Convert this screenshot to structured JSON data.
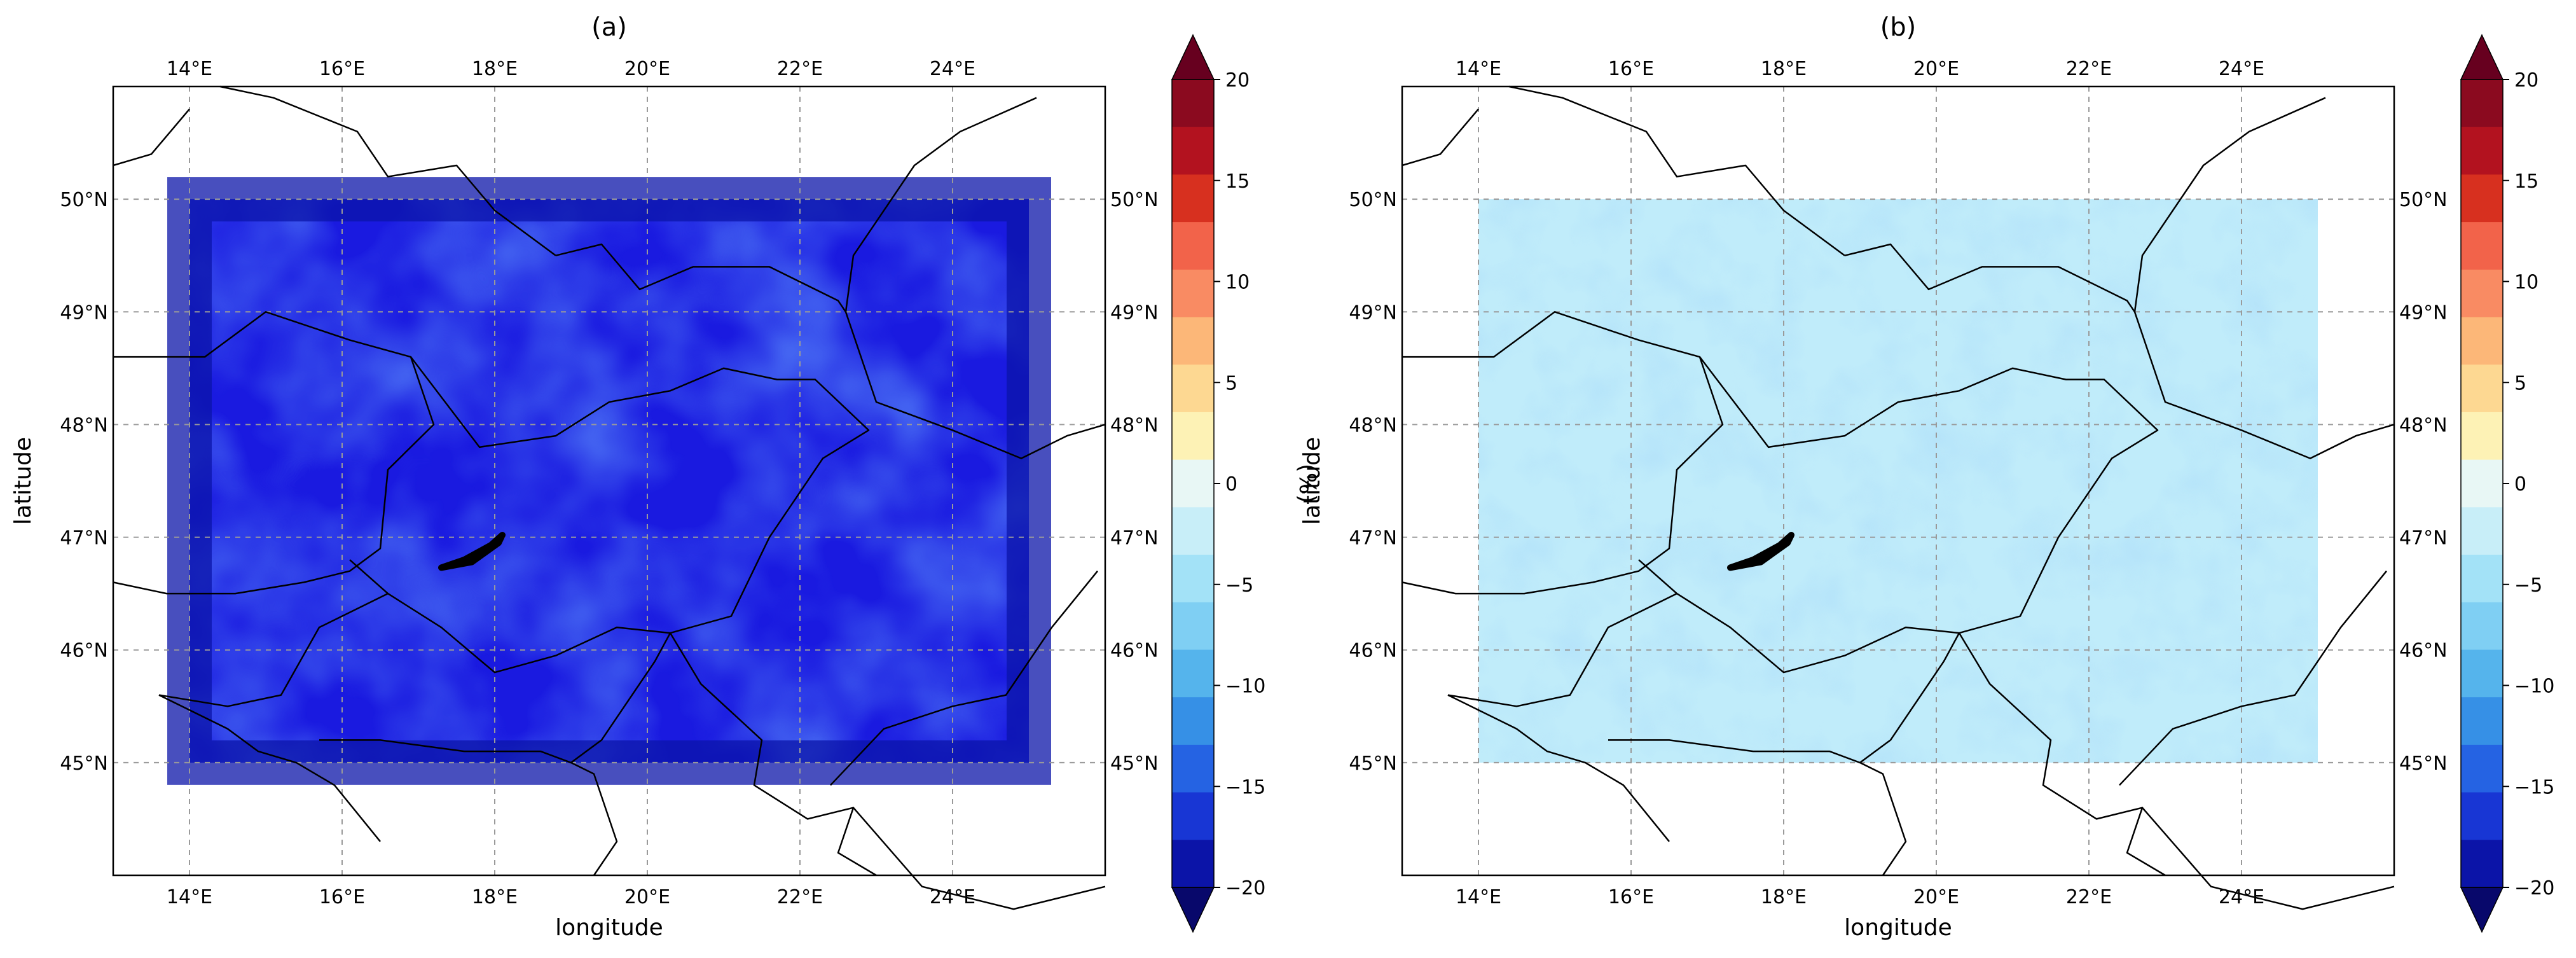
{
  "panels": [
    {
      "title": "(a)",
      "xlabel": "longitude",
      "ylabel": "latitude",
      "mean_tone": "#1a1ae0",
      "colorbar_label": "(%)"
    },
    {
      "title": "(b)",
      "xlabel": "longitude",
      "ylabel": "latitude",
      "mean_tone": "#c0ecfa",
      "colorbar_label": "(%)"
    }
  ],
  "lon_ticks": [
    "14°E",
    "16°E",
    "18°E",
    "20°E",
    "22°E",
    "24°E"
  ],
  "lat_ticks": [
    "50°N",
    "49°N",
    "48°N",
    "47°N",
    "46°N",
    "45°N"
  ],
  "colorbar": {
    "ticks": [
      "20",
      "15",
      "10",
      "5",
      "0",
      "−5",
      "−10",
      "−15",
      "−20"
    ],
    "range": [
      -20,
      20
    ],
    "step": 2.5,
    "colors_top_to_bottom": [
      "#8b0a1f",
      "#b3121f",
      "#d7301f",
      "#f2634a",
      "#f98b63",
      "#fcb778",
      "#fdd892",
      "#fdf2b5",
      "#e8f7f5",
      "#c8eef8",
      "#a3e2f7",
      "#7fcff3",
      "#55b4ec",
      "#3690e6",
      "#2563e3",
      "#1836d4",
      "#0b14a8"
    ],
    "over_color": "#67001f",
    "under_color": "#08086b"
  }
}
